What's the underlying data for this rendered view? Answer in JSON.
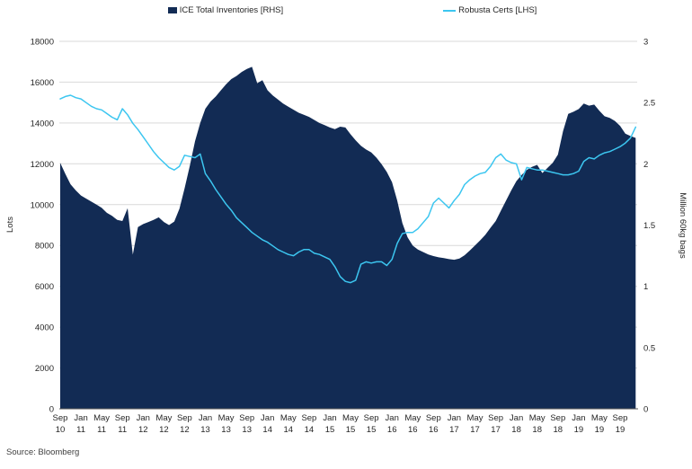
{
  "legend": {
    "series1_label": "ICE Total Inventories [RHS]",
    "series2_label": "Robusta Certs [LHS]"
  },
  "source_text": "Source: Bloomberg",
  "colors": {
    "area": "#122b54",
    "line": "#3cc6f0",
    "grid": "#d9d9d9",
    "axis": "#595959",
    "text": "#262626"
  },
  "chart_data": {
    "type": "area+line dual-axis time series",
    "x_start": "Sep 2010",
    "x_end": "Dec 2019",
    "x_resolution": "monthly",
    "grid": "horizontal only",
    "legend_position": "top",
    "left_axis": {
      "title": "Lots",
      "min": 0,
      "max": 18000,
      "tick_step": 2000
    },
    "right_axis": {
      "title": "Million 60kg bags",
      "min": 0,
      "max": 3,
      "tick_step": 0.5
    },
    "x_ticks": [
      {
        "month": "Sep",
        "year": "10",
        "m": 0
      },
      {
        "month": "Jan",
        "year": "11",
        "m": 4
      },
      {
        "month": "May",
        "year": "11",
        "m": 8
      },
      {
        "month": "Sep",
        "year": "11",
        "m": 12
      },
      {
        "month": "Jan",
        "year": "12",
        "m": 16
      },
      {
        "month": "May",
        "year": "12",
        "m": 20
      },
      {
        "month": "Sep",
        "year": "12",
        "m": 24
      },
      {
        "month": "Jan",
        "year": "13",
        "m": 28
      },
      {
        "month": "May",
        "year": "13",
        "m": 32
      },
      {
        "month": "Sep",
        "year": "13",
        "m": 36
      },
      {
        "month": "Jan",
        "year": "14",
        "m": 40
      },
      {
        "month": "May",
        "year": "14",
        "m": 44
      },
      {
        "month": "Sep",
        "year": "14",
        "m": 48
      },
      {
        "month": "Jan",
        "year": "15",
        "m": 52
      },
      {
        "month": "May",
        "year": "15",
        "m": 56
      },
      {
        "month": "Sep",
        "year": "15",
        "m": 60
      },
      {
        "month": "Jan",
        "year": "16",
        "m": 64
      },
      {
        "month": "May",
        "year": "16",
        "m": 68
      },
      {
        "month": "Sep",
        "year": "16",
        "m": 72
      },
      {
        "month": "Jan",
        "year": "17",
        "m": 76
      },
      {
        "month": "May",
        "year": "17",
        "m": 80
      },
      {
        "month": "Sep",
        "year": "17",
        "m": 84
      },
      {
        "month": "Jan",
        "year": "18",
        "m": 88
      },
      {
        "month": "May",
        "year": "18",
        "m": 92
      },
      {
        "month": "Sep",
        "year": "18",
        "m": 96
      },
      {
        "month": "Jan",
        "year": "19",
        "m": 100
      },
      {
        "month": "May",
        "year": "19",
        "m": 104
      },
      {
        "month": "Sep",
        "year": "19",
        "m": 108
      }
    ],
    "series": [
      {
        "name": "ICE Total Inventories [RHS]",
        "type": "area",
        "axis": "left",
        "unit": "Lots",
        "values": [
          12050,
          11500,
          11000,
          10700,
          10450,
          10300,
          10150,
          10000,
          9850,
          9600,
          9450,
          9250,
          9200,
          9825,
          7550,
          8900,
          9050,
          9150,
          9250,
          9380,
          9150,
          9000,
          9170,
          9800,
          10800,
          11900,
          13100,
          14000,
          14700,
          15050,
          15300,
          15600,
          15900,
          16150,
          16300,
          16500,
          16650,
          16750,
          15950,
          16100,
          15600,
          15350,
          15150,
          14950,
          14800,
          14650,
          14500,
          14400,
          14300,
          14150,
          14000,
          13900,
          13780,
          13700,
          13820,
          13780,
          13450,
          13150,
          12880,
          12700,
          12560,
          12300,
          11980,
          11600,
          11100,
          10200,
          9100,
          8400,
          7990,
          7800,
          7680,
          7560,
          7480,
          7420,
          7380,
          7330,
          7300,
          7360,
          7520,
          7750,
          8000,
          8250,
          8520,
          8870,
          9200,
          9700,
          10200,
          10700,
          11150,
          11450,
          11700,
          11850,
          11950,
          11550,
          11800,
          12050,
          12450,
          13600,
          14450,
          14550,
          14680,
          14950,
          14850,
          14900,
          14600,
          14330,
          14250,
          14100,
          13860,
          13480,
          13360,
          13270
        ]
      },
      {
        "name": "Robusta Certs [LHS]",
        "type": "line",
        "axis": "right",
        "unit": "Million 60kg bags",
        "values": [
          2.53,
          2.55,
          2.56,
          2.54,
          2.53,
          2.5,
          2.47,
          2.45,
          2.44,
          2.41,
          2.38,
          2.36,
          2.45,
          2.4,
          2.33,
          2.28,
          2.22,
          2.16,
          2.1,
          2.05,
          2.01,
          1.97,
          1.95,
          1.98,
          2.07,
          2.06,
          2.05,
          2.08,
          1.92,
          1.86,
          1.79,
          1.73,
          1.67,
          1.62,
          1.56,
          1.52,
          1.48,
          1.44,
          1.41,
          1.38,
          1.36,
          1.33,
          1.3,
          1.28,
          1.26,
          1.25,
          1.28,
          1.3,
          1.3,
          1.27,
          1.26,
          1.24,
          1.22,
          1.16,
          1.08,
          1.04,
          1.03,
          1.05,
          1.18,
          1.2,
          1.19,
          1.2,
          1.2,
          1.17,
          1.22,
          1.35,
          1.43,
          1.44,
          1.44,
          1.47,
          1.52,
          1.57,
          1.68,
          1.72,
          1.68,
          1.64,
          1.7,
          1.75,
          1.83,
          1.87,
          1.9,
          1.92,
          1.93,
          1.98,
          2.05,
          2.08,
          2.03,
          2.01,
          2.0,
          1.87,
          1.97,
          1.96,
          1.95,
          1.95,
          1.94,
          1.93,
          1.92,
          1.91,
          1.91,
          1.92,
          1.94,
          2.02,
          2.05,
          2.04,
          2.07,
          2.09,
          2.1,
          2.12,
          2.14,
          2.17,
          2.21,
          2.3
        ]
      }
    ]
  }
}
